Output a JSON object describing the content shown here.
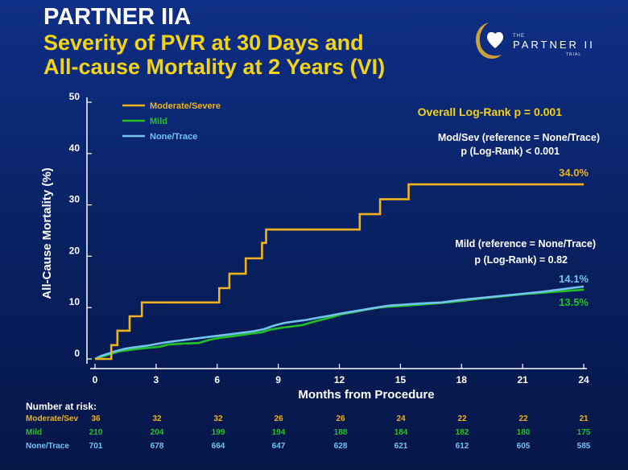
{
  "header": {
    "title": "PARTNER IIA",
    "subtitle_line1": "Severity of PVR at 30 Days and",
    "subtitle_line2": "All-cause Mortality at 2 Years (VI)"
  },
  "logo": {
    "the": "THE",
    "name": "PARTNER II",
    "trial": "TRIAL"
  },
  "chart_data": {
    "type": "line",
    "step": true,
    "title": "",
    "xlabel": "Months from Procedure",
    "ylabel": "All-Cause Mortality (%)",
    "xlim": [
      0,
      24
    ],
    "ylim": [
      0,
      50
    ],
    "xticks": [
      0,
      3,
      6,
      9,
      12,
      15,
      18,
      21,
      24
    ],
    "yticks": [
      0,
      10,
      20,
      30,
      40,
      50
    ],
    "grid": false,
    "legend_position": "top-left",
    "series": [
      {
        "name": "Moderate/Severe",
        "color": "#f0b21c",
        "end_label": "34.0%",
        "points": [
          [
            0,
            0
          ],
          [
            0.8,
            0
          ],
          [
            0.8,
            2.7
          ],
          [
            1.1,
            2.7
          ],
          [
            1.1,
            5.5
          ],
          [
            1.7,
            5.5
          ],
          [
            1.7,
            8.3
          ],
          [
            2.3,
            8.3
          ],
          [
            2.3,
            11
          ],
          [
            6.1,
            11
          ],
          [
            6.1,
            13.8
          ],
          [
            6.6,
            13.8
          ],
          [
            6.6,
            16.6
          ],
          [
            7.4,
            16.6
          ],
          [
            7.4,
            19.6
          ],
          [
            8.2,
            19.6
          ],
          [
            8.2,
            22.6
          ],
          [
            8.4,
            22.6
          ],
          [
            8.4,
            25.2
          ],
          [
            13,
            25.2
          ],
          [
            13,
            28.2
          ],
          [
            14,
            28.2
          ],
          [
            14,
            31.1
          ],
          [
            15.4,
            31.1
          ],
          [
            15.4,
            34
          ],
          [
            24,
            34
          ]
        ]
      },
      {
        "name": "Mild",
        "color": "#22c227",
        "end_label": "13.5%",
        "points": [
          [
            0,
            0
          ],
          [
            0.4,
            0.5
          ],
          [
            0.8,
            1
          ],
          [
            1.2,
            1.5
          ],
          [
            1.6,
            1.7
          ],
          [
            2.2,
            2
          ],
          [
            2.7,
            2.2
          ],
          [
            3.2,
            2.4
          ],
          [
            3.6,
            2.8
          ],
          [
            4.3,
            3
          ],
          [
            5.1,
            3.1
          ],
          [
            5.6,
            3.7
          ],
          [
            6.1,
            4.1
          ],
          [
            6.9,
            4.5
          ],
          [
            7.6,
            4.9
          ],
          [
            8.2,
            5.2
          ],
          [
            8.6,
            5.7
          ],
          [
            9.2,
            6.1
          ],
          [
            10.2,
            6.6
          ],
          [
            10.6,
            7.1
          ],
          [
            11.1,
            7.6
          ],
          [
            11.6,
            8.1
          ],
          [
            12.1,
            8.7
          ],
          [
            12.7,
            9.1
          ],
          [
            13.3,
            9.6
          ],
          [
            14.1,
            10.1
          ],
          [
            15,
            10.3
          ],
          [
            16,
            10.6
          ],
          [
            17,
            10.9
          ],
          [
            18,
            11.3
          ],
          [
            19,
            11.8
          ],
          [
            20,
            12.2
          ],
          [
            21,
            12.6
          ],
          [
            22,
            12.9
          ],
          [
            23,
            13.2
          ],
          [
            24,
            13.5
          ]
        ]
      },
      {
        "name": "None/Trace",
        "color": "#73c3f2",
        "end_label": "14.1%",
        "points": [
          [
            0,
            0
          ],
          [
            0.3,
            0.6
          ],
          [
            0.7,
            1.1
          ],
          [
            1,
            1.5
          ],
          [
            1.5,
            2
          ],
          [
            2,
            2.3
          ],
          [
            2.6,
            2.6
          ],
          [
            3,
            2.9
          ],
          [
            3.6,
            3.3
          ],
          [
            4.2,
            3.6
          ],
          [
            4.8,
            3.9
          ],
          [
            5.4,
            4.2
          ],
          [
            6,
            4.5
          ],
          [
            6.6,
            4.8
          ],
          [
            7.2,
            5.1
          ],
          [
            7.8,
            5.4
          ],
          [
            8.3,
            5.8
          ],
          [
            8.8,
            6.5
          ],
          [
            9.3,
            7
          ],
          [
            9.8,
            7.3
          ],
          [
            10.4,
            7.6
          ],
          [
            10.9,
            8
          ],
          [
            11.5,
            8.4
          ],
          [
            12,
            8.8
          ],
          [
            12.6,
            9.2
          ],
          [
            13.2,
            9.6
          ],
          [
            13.8,
            10
          ],
          [
            14.5,
            10.4
          ],
          [
            15.2,
            10.6
          ],
          [
            16,
            10.8
          ],
          [
            17,
            11
          ],
          [
            18,
            11.5
          ],
          [
            19,
            11.9
          ],
          [
            20,
            12.3
          ],
          [
            21,
            12.7
          ],
          [
            22,
            13.1
          ],
          [
            23,
            13.6
          ],
          [
            24,
            14.1
          ]
        ]
      }
    ],
    "annotations": {
      "overall": "Overall Log-Rank p = 0.001",
      "modsev_line1": "Mod/Sev (reference = None/Trace)",
      "modsev_line2": "p (Log-Rank) < 0.001",
      "mild_line1": "Mild (reference = None/Trace)",
      "mild_line2": "p (Log-Rank) = 0.82"
    }
  },
  "risk_table": {
    "title": "Number at risk:",
    "rows": [
      {
        "label": "Moderate/Sev",
        "color": "#f0b21c",
        "values": [
          "36",
          "32",
          "32",
          "26",
          "26",
          "24",
          "22",
          "22",
          "21"
        ]
      },
      {
        "label": "Mild",
        "color": "#22c227",
        "values": [
          "210",
          "204",
          "199",
          "194",
          "188",
          "184",
          "182",
          "180",
          "175"
        ]
      },
      {
        "label": "None/Trace",
        "color": "#73c3f2",
        "values": [
          "701",
          "678",
          "664",
          "647",
          "628",
          "621",
          "612",
          "605",
          "585"
        ]
      }
    ]
  }
}
